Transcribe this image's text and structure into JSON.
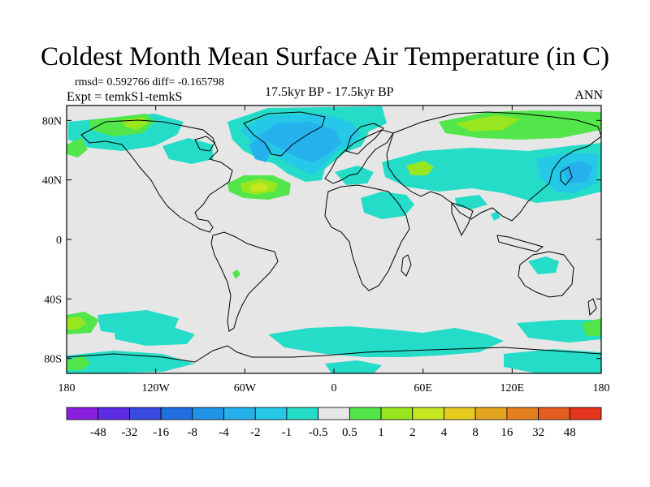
{
  "title": "Coldest Month Mean Surface Air Temperature (in C)",
  "stats": "rmsd= 0.592766 diff= -0.165798",
  "experiment": "Expt = temkS1-temkS",
  "period": "17.5kyr BP - 17.5kyr BP",
  "season": "ANN",
  "map": {
    "projection": "cylindrical equidistant",
    "lon_range": [
      -180,
      180
    ],
    "lat_range": [
      -90,
      90
    ],
    "x_ticks": [
      {
        "lon": -180,
        "label": "180"
      },
      {
        "lon": -120,
        "label": "120W"
      },
      {
        "lon": -60,
        "label": "60W"
      },
      {
        "lon": 0,
        "label": "0"
      },
      {
        "lon": 60,
        "label": "60E"
      },
      {
        "lon": 120,
        "label": "120E"
      },
      {
        "lon": 180,
        "label": "180"
      }
    ],
    "y_ticks": [
      {
        "lat": 80,
        "label": "80N"
      },
      {
        "lat": 40,
        "label": "40N"
      },
      {
        "lat": 0,
        "label": "0"
      },
      {
        "lat": -40,
        "label": "40S"
      },
      {
        "lat": -80,
        "label": "80S"
      }
    ],
    "background_color": "#e6e6e6"
  },
  "colorbar": {
    "colors": [
      "#8a1fe0",
      "#5f2ce6",
      "#3a4ce0",
      "#1f6fe0",
      "#1f93e6",
      "#25b2ec",
      "#25c8e6",
      "#25dcc8",
      "#e6e6e6",
      "#52e64a",
      "#97e61f",
      "#c8e61f",
      "#e6cc1f",
      "#e6a51f",
      "#e6801f",
      "#e65e1f",
      "#e6351f"
    ],
    "labels": [
      "-48",
      "-32",
      "-16",
      "-8",
      "-4",
      "-2",
      "-1",
      "-0.5",
      "0.5",
      "1",
      "2",
      "4",
      "8",
      "16",
      "32",
      "48"
    ]
  }
}
